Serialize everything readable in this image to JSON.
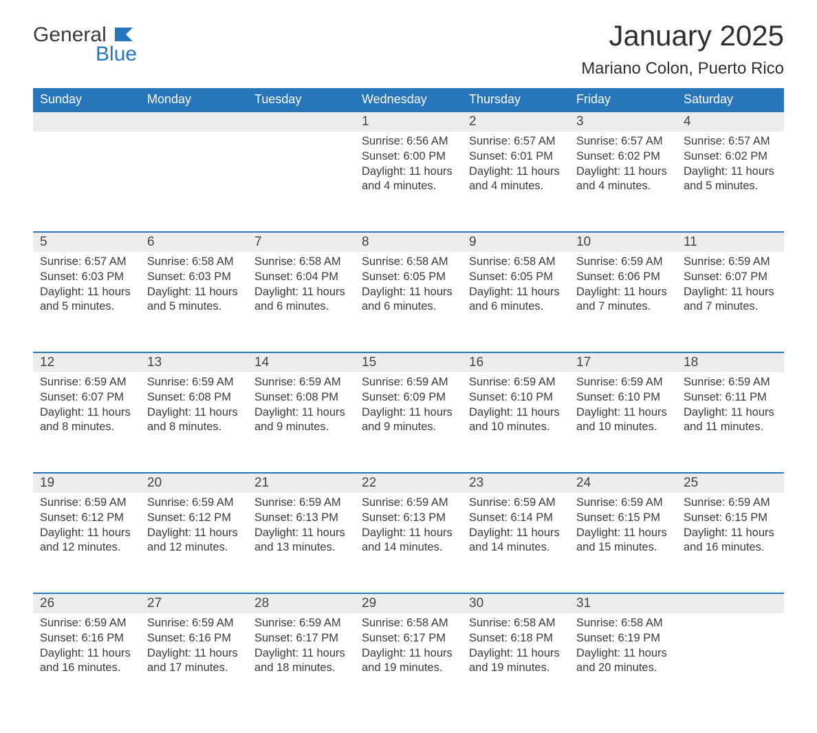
{
  "logo": {
    "word1": "General",
    "word2": "Blue",
    "icon_color": "#2775bb",
    "text_color_dark": "#3a3a3a"
  },
  "title": "January 2025",
  "location": "Mariano Colon, Puerto Rico",
  "colors": {
    "header_bg": "#2775bb",
    "header_text": "#ffffff",
    "daynum_bg": "#ececec",
    "daynum_border": "#2775bb",
    "body_text": "#3a3a3a",
    "page_bg": "#ffffff"
  },
  "weekdays": [
    "Sunday",
    "Monday",
    "Tuesday",
    "Wednesday",
    "Thursday",
    "Friday",
    "Saturday"
  ],
  "weeks": [
    [
      null,
      null,
      null,
      {
        "n": "1",
        "sr": "Sunrise: 6:56 AM",
        "ss": "Sunset: 6:00 PM",
        "dl": "Daylight: 11 hours and 4 minutes."
      },
      {
        "n": "2",
        "sr": "Sunrise: 6:57 AM",
        "ss": "Sunset: 6:01 PM",
        "dl": "Daylight: 11 hours and 4 minutes."
      },
      {
        "n": "3",
        "sr": "Sunrise: 6:57 AM",
        "ss": "Sunset: 6:02 PM",
        "dl": "Daylight: 11 hours and 4 minutes."
      },
      {
        "n": "4",
        "sr": "Sunrise: 6:57 AM",
        "ss": "Sunset: 6:02 PM",
        "dl": "Daylight: 11 hours and 5 minutes."
      }
    ],
    [
      {
        "n": "5",
        "sr": "Sunrise: 6:57 AM",
        "ss": "Sunset: 6:03 PM",
        "dl": "Daylight: 11 hours and 5 minutes."
      },
      {
        "n": "6",
        "sr": "Sunrise: 6:58 AM",
        "ss": "Sunset: 6:03 PM",
        "dl": "Daylight: 11 hours and 5 minutes."
      },
      {
        "n": "7",
        "sr": "Sunrise: 6:58 AM",
        "ss": "Sunset: 6:04 PM",
        "dl": "Daylight: 11 hours and 6 minutes."
      },
      {
        "n": "8",
        "sr": "Sunrise: 6:58 AM",
        "ss": "Sunset: 6:05 PM",
        "dl": "Daylight: 11 hours and 6 minutes."
      },
      {
        "n": "9",
        "sr": "Sunrise: 6:58 AM",
        "ss": "Sunset: 6:05 PM",
        "dl": "Daylight: 11 hours and 6 minutes."
      },
      {
        "n": "10",
        "sr": "Sunrise: 6:59 AM",
        "ss": "Sunset: 6:06 PM",
        "dl": "Daylight: 11 hours and 7 minutes."
      },
      {
        "n": "11",
        "sr": "Sunrise: 6:59 AM",
        "ss": "Sunset: 6:07 PM",
        "dl": "Daylight: 11 hours and 7 minutes."
      }
    ],
    [
      {
        "n": "12",
        "sr": "Sunrise: 6:59 AM",
        "ss": "Sunset: 6:07 PM",
        "dl": "Daylight: 11 hours and 8 minutes."
      },
      {
        "n": "13",
        "sr": "Sunrise: 6:59 AM",
        "ss": "Sunset: 6:08 PM",
        "dl": "Daylight: 11 hours and 8 minutes."
      },
      {
        "n": "14",
        "sr": "Sunrise: 6:59 AM",
        "ss": "Sunset: 6:08 PM",
        "dl": "Daylight: 11 hours and 9 minutes."
      },
      {
        "n": "15",
        "sr": "Sunrise: 6:59 AM",
        "ss": "Sunset: 6:09 PM",
        "dl": "Daylight: 11 hours and 9 minutes."
      },
      {
        "n": "16",
        "sr": "Sunrise: 6:59 AM",
        "ss": "Sunset: 6:10 PM",
        "dl": "Daylight: 11 hours and 10 minutes."
      },
      {
        "n": "17",
        "sr": "Sunrise: 6:59 AM",
        "ss": "Sunset: 6:10 PM",
        "dl": "Daylight: 11 hours and 10 minutes."
      },
      {
        "n": "18",
        "sr": "Sunrise: 6:59 AM",
        "ss": "Sunset: 6:11 PM",
        "dl": "Daylight: 11 hours and 11 minutes."
      }
    ],
    [
      {
        "n": "19",
        "sr": "Sunrise: 6:59 AM",
        "ss": "Sunset: 6:12 PM",
        "dl": "Daylight: 11 hours and 12 minutes."
      },
      {
        "n": "20",
        "sr": "Sunrise: 6:59 AM",
        "ss": "Sunset: 6:12 PM",
        "dl": "Daylight: 11 hours and 12 minutes."
      },
      {
        "n": "21",
        "sr": "Sunrise: 6:59 AM",
        "ss": "Sunset: 6:13 PM",
        "dl": "Daylight: 11 hours and 13 minutes."
      },
      {
        "n": "22",
        "sr": "Sunrise: 6:59 AM",
        "ss": "Sunset: 6:13 PM",
        "dl": "Daylight: 11 hours and 14 minutes."
      },
      {
        "n": "23",
        "sr": "Sunrise: 6:59 AM",
        "ss": "Sunset: 6:14 PM",
        "dl": "Daylight: 11 hours and 14 minutes."
      },
      {
        "n": "24",
        "sr": "Sunrise: 6:59 AM",
        "ss": "Sunset: 6:15 PM",
        "dl": "Daylight: 11 hours and 15 minutes."
      },
      {
        "n": "25",
        "sr": "Sunrise: 6:59 AM",
        "ss": "Sunset: 6:15 PM",
        "dl": "Daylight: 11 hours and 16 minutes."
      }
    ],
    [
      {
        "n": "26",
        "sr": "Sunrise: 6:59 AM",
        "ss": "Sunset: 6:16 PM",
        "dl": "Daylight: 11 hours and 16 minutes."
      },
      {
        "n": "27",
        "sr": "Sunrise: 6:59 AM",
        "ss": "Sunset: 6:16 PM",
        "dl": "Daylight: 11 hours and 17 minutes."
      },
      {
        "n": "28",
        "sr": "Sunrise: 6:59 AM",
        "ss": "Sunset: 6:17 PM",
        "dl": "Daylight: 11 hours and 18 minutes."
      },
      {
        "n": "29",
        "sr": "Sunrise: 6:58 AM",
        "ss": "Sunset: 6:17 PM",
        "dl": "Daylight: 11 hours and 19 minutes."
      },
      {
        "n": "30",
        "sr": "Sunrise: 6:58 AM",
        "ss": "Sunset: 6:18 PM",
        "dl": "Daylight: 11 hours and 19 minutes."
      },
      {
        "n": "31",
        "sr": "Sunrise: 6:58 AM",
        "ss": "Sunset: 6:19 PM",
        "dl": "Daylight: 11 hours and 20 minutes."
      },
      null
    ]
  ]
}
